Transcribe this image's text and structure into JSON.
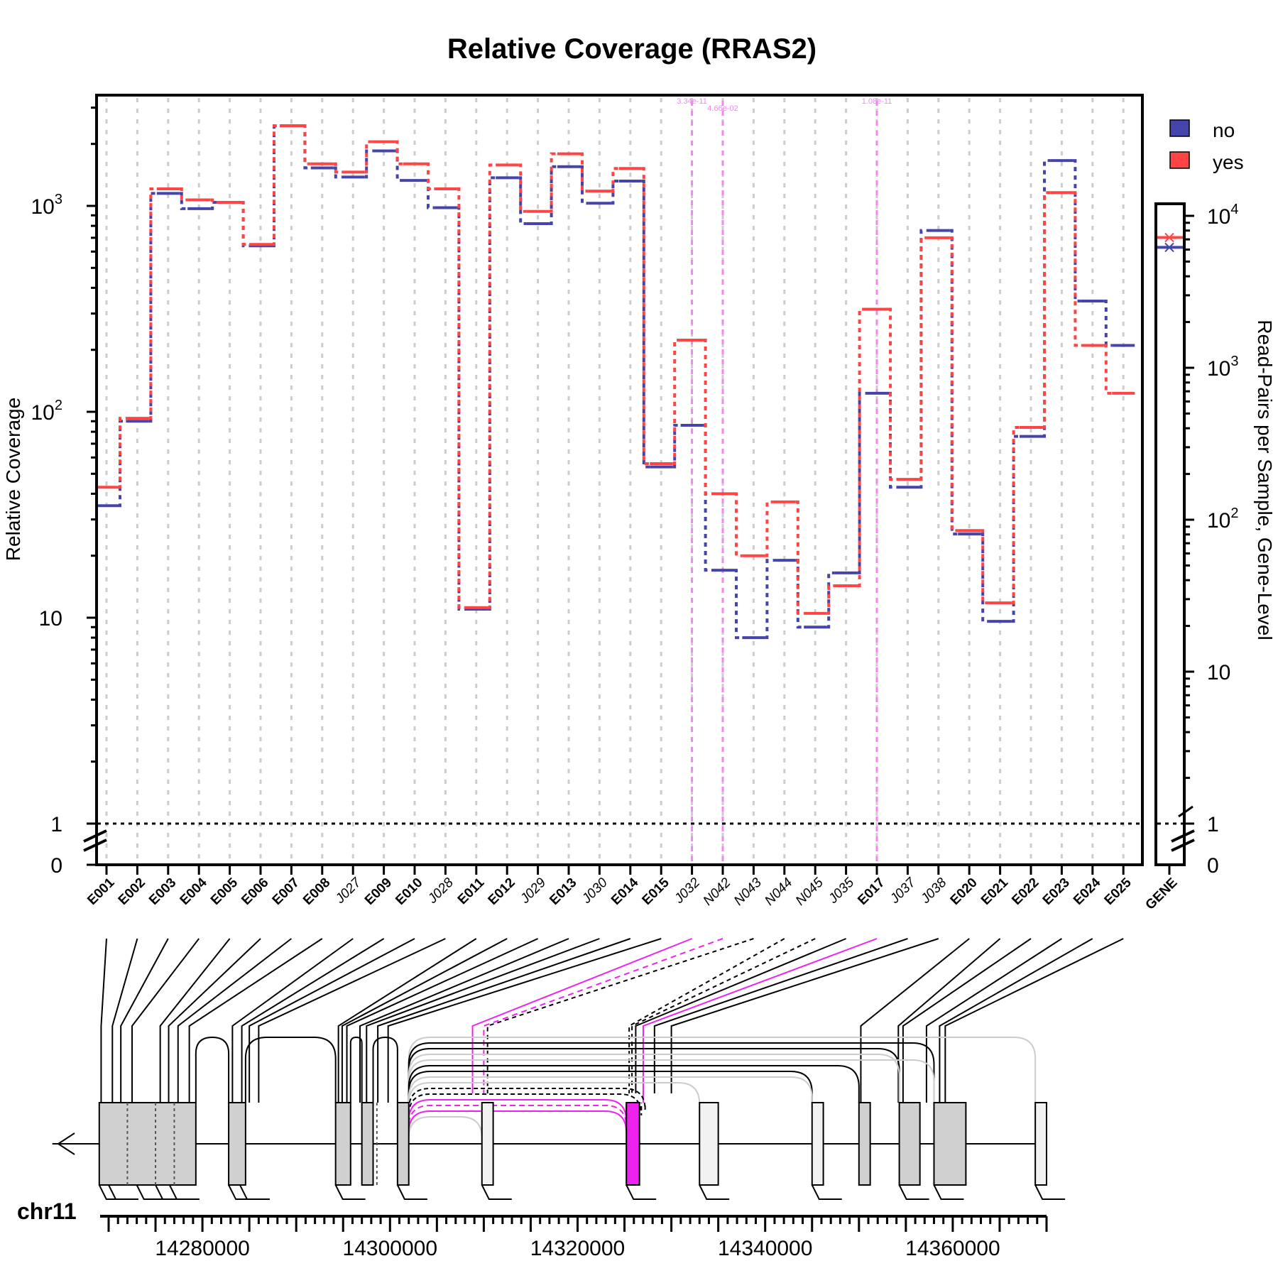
{
  "colors": {
    "no": "#4444aa",
    "yes": "#ff4444",
    "highlight": "#ee22ee",
    "grid": "#cccccc",
    "gray_exon": "#d0d0d0",
    "light_exon": "#f2f2f2"
  },
  "chart_data": {
    "type": "line",
    "title": "Relative Coverage (RRAS2)",
    "ylabel": "Relative Coverage",
    "y2label": "Read-Pairs per Sample, Gene-Level",
    "yscale": "log",
    "ylim": [
      1,
      3500
    ],
    "y_ticks": [
      {
        "v": 1,
        "t": "1"
      },
      {
        "v": 10,
        "t": "10"
      }
    ],
    "y_zero_label": "0",
    "y_sup_ticks": [
      {
        "v": 100,
        "b": "10",
        "e": "2"
      },
      {
        "v": 1000,
        "b": "10",
        "e": "3"
      }
    ],
    "y2_ticks": [
      {
        "v": 1,
        "t": "1"
      },
      {
        "v": 10,
        "t": "10"
      }
    ],
    "y2_zero_label": "0",
    "y2_sup_ticks": [
      {
        "v": 100,
        "b": "10",
        "e": "2"
      },
      {
        "v": 1000,
        "b": "10",
        "e": "3"
      },
      {
        "v": 10000,
        "b": "10",
        "e": "4"
      }
    ],
    "categories": [
      "E001",
      "E002",
      "E003",
      "E004",
      "E005",
      "E006",
      "E007",
      "E008",
      "J027",
      "E009",
      "E010",
      "J028",
      "E011",
      "E012",
      "J029",
      "E013",
      "J030",
      "E014",
      "E015",
      "J032",
      "N042",
      "N043",
      "N044",
      "N045",
      "J035",
      "E017",
      "J037",
      "J038",
      "E020",
      "E021",
      "E022",
      "E023",
      "E024",
      "E025"
    ],
    "category_italic": [
      false,
      false,
      false,
      false,
      false,
      false,
      false,
      false,
      true,
      false,
      false,
      true,
      false,
      false,
      true,
      false,
      true,
      false,
      false,
      true,
      true,
      true,
      true,
      true,
      true,
      false,
      true,
      true,
      false,
      false,
      false,
      false,
      false,
      false
    ],
    "series": [
      {
        "name": "no",
        "values": [
          35,
          90,
          1150,
          970,
          1040,
          640,
          2450,
          1530,
          1380,
          1850,
          1330,
          980,
          11,
          1370,
          820,
          1550,
          1030,
          1320,
          54,
          86,
          17,
          8,
          19,
          9,
          16.5,
          123,
          43,
          760,
          25.5,
          9.6,
          76,
          1660,
          345,
          210
        ]
      },
      {
        "name": "yes",
        "values": [
          43,
          93,
          1210,
          1070,
          1040,
          650,
          2450,
          1600,
          1460,
          2050,
          1600,
          1210,
          11.2,
          1580,
          940,
          1790,
          1180,
          1520,
          56,
          223,
          40,
          20,
          36.5,
          10.5,
          14.3,
          315,
          47,
          700,
          26.5,
          11.8,
          84,
          1160,
          210,
          123
        ]
      }
    ],
    "gene_level": {
      "label": "GENE",
      "no": 6200,
      "yes": 7200
    },
    "sig_markers": [
      {
        "x": "J032",
        "label": "3.34e-11"
      },
      {
        "x": "N042",
        "label": "4.66e-02"
      },
      {
        "x": "E017",
        "label": "1.08e-11"
      }
    ],
    "legend": {
      "position": "top-right",
      "items": [
        "no",
        "yes"
      ]
    },
    "gene_model": {
      "chrom": "chr11",
      "x_ticks": [
        "14280000",
        "14300000",
        "14320000",
        "14340000",
        "14360000"
      ],
      "strand": "minus"
    }
  }
}
